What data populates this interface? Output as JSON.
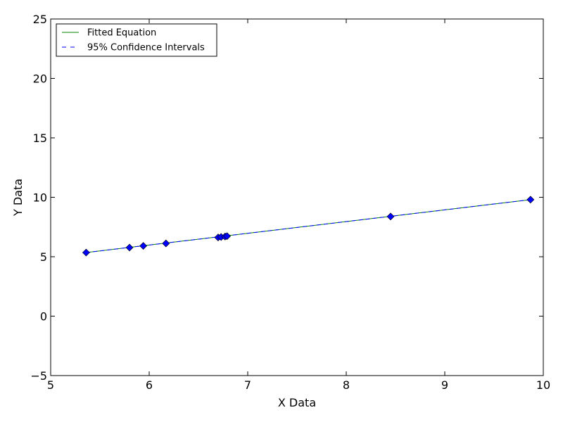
{
  "chart_data": {
    "type": "scatter",
    "title": "",
    "xlabel": "X Data",
    "ylabel": "Y Data",
    "xlim": [
      5,
      10
    ],
    "ylim": [
      -5,
      25
    ],
    "xticks": [
      5,
      6,
      7,
      8,
      9,
      10
    ],
    "yticks": [
      -5,
      0,
      5,
      10,
      15,
      20,
      25
    ],
    "xtick_labels": [
      "5",
      "6",
      "7",
      "8",
      "9",
      "10"
    ],
    "ytick_labels": [
      "−5",
      "0",
      "5",
      "10",
      "15",
      "20",
      "25"
    ],
    "grid": false,
    "legend_position": "top-left",
    "legend": [
      {
        "label": "Fitted Equation",
        "color": "#008000",
        "style": "solid"
      },
      {
        "label": "95% Confidence Intervals",
        "color": "#0000ff",
        "style": "dashed"
      }
    ],
    "series": [
      {
        "kind": "scatter",
        "marker": "diamond",
        "color": "#0000ff",
        "x": [
          5.36,
          5.8,
          5.94,
          6.17,
          6.7,
          6.73,
          6.77,
          6.79,
          8.45,
          9.87
        ],
        "y": [
          5.35,
          5.77,
          5.91,
          6.12,
          6.62,
          6.66,
          6.7,
          6.73,
          8.38,
          9.8
        ]
      },
      {
        "kind": "line",
        "name": "Fitted Equation",
        "color": "#008000",
        "style": "solid",
        "x": [
          5.36,
          9.87
        ],
        "y": [
          5.35,
          9.8
        ]
      },
      {
        "kind": "line",
        "name": "95% Confidence Intervals",
        "color": "#0000ff",
        "style": "dashed",
        "x": [
          5.36,
          9.87
        ],
        "y": [
          5.35,
          9.8
        ]
      }
    ]
  }
}
